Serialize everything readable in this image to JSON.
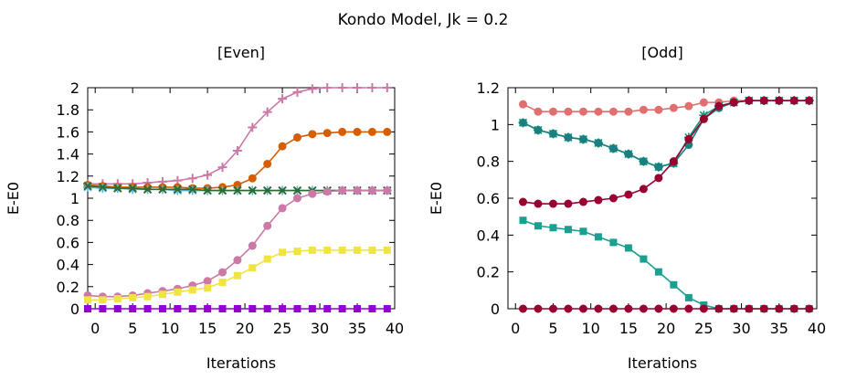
{
  "title": "Kondo Model, Jk = 0.2",
  "chart_data": [
    {
      "type": "line",
      "title": "[Even]",
      "xlabel": "Iterations",
      "ylabel": "E-E0",
      "xlim": [
        -1,
        40
      ],
      "ylim": [
        0,
        2
      ],
      "xticks": [
        0,
        5,
        10,
        15,
        20,
        25,
        30,
        35,
        40
      ],
      "yticks": [
        0,
        0.2,
        0.4,
        0.6,
        0.8,
        1,
        1.2,
        1.4,
        1.6,
        1.8,
        2
      ],
      "ytick_labels": [
        "0",
        "0.2",
        "0.4",
        "0.6",
        "0.8",
        "1",
        "1.2",
        "1.4",
        "1.6",
        "1.8",
        "2"
      ],
      "grid": false,
      "x": [
        -1,
        1,
        3,
        5,
        7,
        9,
        11,
        13,
        15,
        17,
        19,
        21,
        23,
        25,
        27,
        29,
        31,
        33,
        35,
        37,
        39
      ],
      "series": [
        {
          "name": "pink-plus",
          "color": "#cc79a7",
          "marker": "plus",
          "values": [
            1.13,
            1.13,
            1.13,
            1.13,
            1.14,
            1.15,
            1.16,
            1.18,
            1.21,
            1.28,
            1.43,
            1.64,
            1.78,
            1.9,
            1.96,
            1.99,
            2.0,
            2.0,
            2.0,
            2.0,
            2.0
          ]
        },
        {
          "name": "orange-circle",
          "color": "#d55e00",
          "marker": "circle",
          "values": [
            1.12,
            1.11,
            1.1,
            1.1,
            1.1,
            1.1,
            1.1,
            1.09,
            1.09,
            1.1,
            1.12,
            1.18,
            1.31,
            1.47,
            1.55,
            1.58,
            1.59,
            1.6,
            1.6,
            1.6,
            1.6
          ]
        },
        {
          "name": "blue-star",
          "color": "#56b4e9",
          "marker": "star",
          "values": [
            1.1,
            1.09,
            1.09,
            1.08,
            1.08,
            1.08,
            1.07,
            1.07,
            1.07,
            1.07,
            1.07,
            1.07,
            1.07,
            1.07,
            1.07,
            1.07,
            1.07,
            1.07,
            1.07,
            1.07,
            1.07
          ]
        },
        {
          "name": "darkgreen-x",
          "color": "#2e6b2e",
          "marker": "x",
          "values": [
            1.11,
            1.1,
            1.09,
            1.09,
            1.08,
            1.08,
            1.08,
            1.08,
            1.07,
            1.07,
            1.07,
            1.07,
            1.07,
            1.07,
            1.07,
            1.07,
            1.07,
            1.07,
            1.07,
            1.07,
            1.07
          ]
        },
        {
          "name": "pink-circle",
          "color": "#cc79a7",
          "marker": "circle",
          "values": [
            0.12,
            0.11,
            0.11,
            0.12,
            0.14,
            0.16,
            0.18,
            0.21,
            0.25,
            0.33,
            0.44,
            0.57,
            0.75,
            0.91,
            1.0,
            1.04,
            1.06,
            1.07,
            1.07,
            1.07,
            1.07
          ]
        },
        {
          "name": "yellow-square",
          "color": "#f0e442",
          "marker": "square",
          "values": [
            0.08,
            0.08,
            0.09,
            0.1,
            0.11,
            0.13,
            0.15,
            0.17,
            0.19,
            0.24,
            0.3,
            0.37,
            0.45,
            0.51,
            0.52,
            0.53,
            0.53,
            0.53,
            0.53,
            0.53,
            0.53
          ]
        },
        {
          "name": "purple-square",
          "color": "#9400d3",
          "marker": "square",
          "values": [
            0.0,
            0.0,
            0.0,
            0.0,
            0.0,
            0.0,
            0.0,
            0.0,
            0.0,
            0.0,
            0.0,
            0.0,
            0.0,
            0.0,
            0.0,
            0.0,
            0.0,
            0.0,
            0.0,
            0.0,
            0.0
          ]
        }
      ]
    },
    {
      "type": "line",
      "title": "[Odd]",
      "xlabel": "Iterations",
      "ylabel": "E-E0",
      "xlim": [
        -1,
        40
      ],
      "ylim": [
        0,
        1.2
      ],
      "xticks": [
        0,
        5,
        10,
        15,
        20,
        25,
        30,
        35,
        40
      ],
      "yticks": [
        0,
        0.2,
        0.4,
        0.6,
        0.8,
        1,
        1.2
      ],
      "ytick_labels": [
        "0",
        "0.2",
        "0.4",
        "0.6",
        "0.8",
        "1",
        "1.2"
      ],
      "grid": false,
      "x": [
        1,
        3,
        5,
        7,
        9,
        11,
        13,
        15,
        17,
        19,
        21,
        23,
        25,
        27,
        29,
        31,
        33,
        35,
        37,
        39
      ],
      "series": [
        {
          "name": "salmon-circle",
          "color": "#e07070",
          "marker": "circle",
          "values": [
            1.11,
            1.07,
            1.07,
            1.07,
            1.07,
            1.07,
            1.07,
            1.07,
            1.08,
            1.08,
            1.09,
            1.1,
            1.12,
            1.12,
            1.13,
            1.13,
            1.13,
            1.13,
            1.13,
            1.13
          ]
        },
        {
          "name": "teal-star",
          "color": "#009e73",
          "marker": "star",
          "values": [
            1.01,
            0.97,
            0.95,
            0.93,
            0.92,
            0.9,
            0.87,
            0.84,
            0.8,
            0.77,
            0.79,
            0.93,
            1.05,
            1.1,
            1.12,
            1.13,
            1.13,
            1.13,
            1.13,
            1.13
          ]
        },
        {
          "name": "teal-circle",
          "color": "#1a7f80",
          "marker": "circle",
          "values": [
            1.01,
            0.97,
            0.95,
            0.93,
            0.92,
            0.9,
            0.87,
            0.84,
            0.8,
            0.77,
            0.79,
            0.89,
            1.03,
            1.09,
            1.12,
            1.13,
            1.13,
            1.13,
            1.13,
            1.13
          ]
        },
        {
          "name": "maroon-circle",
          "color": "#990030",
          "marker": "circle",
          "values": [
            0.58,
            0.57,
            0.57,
            0.57,
            0.58,
            0.59,
            0.6,
            0.62,
            0.65,
            0.71,
            0.8,
            0.92,
            1.03,
            1.1,
            1.12,
            1.13,
            1.13,
            1.13,
            1.13,
            1.13
          ]
        },
        {
          "name": "teal-square",
          "color": "#1aa090",
          "marker": "square",
          "values": [
            0.48,
            0.45,
            0.44,
            0.43,
            0.42,
            0.39,
            0.36,
            0.33,
            0.27,
            0.2,
            0.13,
            0.06,
            0.02,
            0.0,
            0.0,
            0.0,
            0.0,
            0.0,
            0.0,
            0.0
          ]
        },
        {
          "name": "maroon-filled-circle",
          "color": "#990030",
          "marker": "circle",
          "values": [
            0.0,
            0.0,
            0.0,
            0.0,
            0.0,
            0.0,
            0.0,
            0.0,
            0.0,
            0.0,
            0.0,
            0.0,
            0.0,
            0.0,
            0.0,
            0.0,
            0.0,
            0.0,
            0.0,
            0.0
          ]
        }
      ]
    }
  ]
}
